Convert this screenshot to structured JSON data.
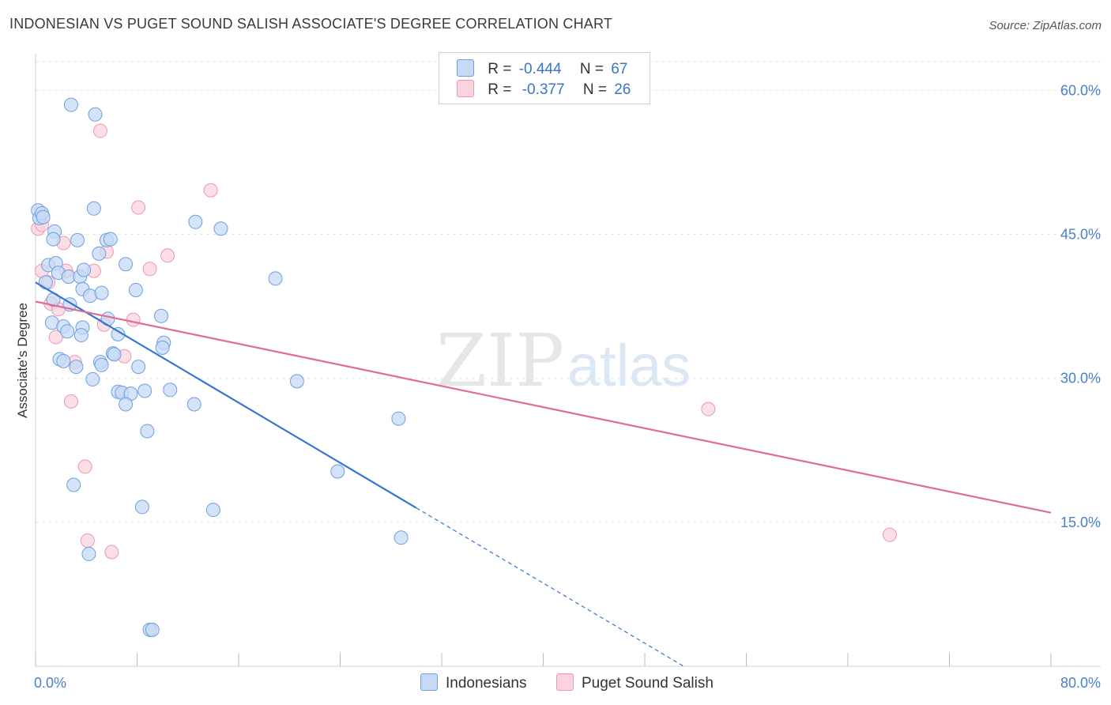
{
  "header": {
    "title": "INDONESIAN VS PUGET SOUND SALISH ASSOCIATE'S DEGREE CORRELATION CHART",
    "source": "Source: ZipAtlas.com"
  },
  "watermark": {
    "zip": "ZIP",
    "atlas": "atlas"
  },
  "colors": {
    "indonesian_fill": "#c6daf5",
    "indonesian_stroke": "#6e9ee0",
    "indonesian_line": "#3576d0",
    "salish_fill": "#f9d3de",
    "salish_stroke": "#ec97b0",
    "salish_line": "#e06b93",
    "grid": "#e4e4e4",
    "tick_text": "#4a7fc9"
  },
  "legend": {
    "rows": [
      {
        "r_label": "R =",
        "r_value": "-0.444",
        "n_label": "N =",
        "n_value": "67"
      },
      {
        "r_label": "R =",
        "r_value": "-0.377",
        "n_label": "N =",
        "n_value": "26"
      }
    ]
  },
  "bottom_legend": {
    "indonesian": "Indonesians",
    "salish": "Puget Sound Salish"
  },
  "chart_data": {
    "type": "scatter",
    "title": "INDONESIAN VS PUGET SOUND SALISH ASSOCIATE'S DEGREE CORRELATION CHART",
    "xlabel": "",
    "ylabel": "Associate's Degree",
    "xlim": [
      0,
      80
    ],
    "ylim": [
      0,
      63
    ],
    "x_tick_labels": {
      "min": "0.0%",
      "max": "80.0%"
    },
    "y_ticks": [
      {
        "value": 15,
        "label": "15.0%"
      },
      {
        "value": 30,
        "label": "30.0%"
      },
      {
        "value": 45,
        "label": "45.0%"
      },
      {
        "value": 60,
        "label": "60.0%"
      }
    ],
    "series": [
      {
        "name": "Indonesians",
        "r": -0.444,
        "n": 67,
        "trend": {
          "x0": 0,
          "y0": 40.0,
          "x1": 30,
          "y1": 16.5,
          "dash_to_x": 51.0
        },
        "points": [
          [
            0.2,
            47.5
          ],
          [
            0.3,
            46.7
          ],
          [
            0.5,
            47.2
          ],
          [
            0.6,
            46.8
          ],
          [
            2.8,
            58.5
          ],
          [
            4.7,
            57.5
          ],
          [
            4.6,
            47.7
          ],
          [
            1.5,
            45.3
          ],
          [
            1.4,
            44.5
          ],
          [
            3.3,
            44.4
          ],
          [
            5.6,
            44.4
          ],
          [
            5.9,
            44.5
          ],
          [
            5.0,
            43.0
          ],
          [
            12.6,
            46.3
          ],
          [
            14.6,
            45.6
          ],
          [
            1.0,
            41.8
          ],
          [
            1.6,
            42.0
          ],
          [
            7.1,
            41.9
          ],
          [
            1.8,
            41.0
          ],
          [
            2.6,
            40.6
          ],
          [
            3.5,
            40.6
          ],
          [
            0.8,
            40.0
          ],
          [
            3.8,
            41.3
          ],
          [
            18.9,
            40.4
          ],
          [
            3.7,
            39.3
          ],
          [
            7.9,
            39.2
          ],
          [
            4.3,
            38.6
          ],
          [
            5.2,
            38.9
          ],
          [
            1.4,
            38.2
          ],
          [
            2.7,
            37.7
          ],
          [
            9.9,
            36.5
          ],
          [
            5.7,
            36.2
          ],
          [
            1.3,
            35.8
          ],
          [
            2.2,
            35.4
          ],
          [
            3.7,
            35.3
          ],
          [
            2.5,
            34.9
          ],
          [
            3.6,
            34.5
          ],
          [
            6.5,
            34.6
          ],
          [
            10.1,
            33.7
          ],
          [
            6.1,
            32.6
          ],
          [
            6.2,
            32.5
          ],
          [
            1.9,
            32.0
          ],
          [
            2.2,
            31.8
          ],
          [
            5.1,
            31.7
          ],
          [
            5.2,
            31.4
          ],
          [
            3.2,
            31.2
          ],
          [
            8.1,
            31.2
          ],
          [
            4.5,
            29.9
          ],
          [
            20.6,
            29.7
          ],
          [
            6.5,
            28.6
          ],
          [
            6.8,
            28.5
          ],
          [
            7.5,
            28.4
          ],
          [
            8.6,
            28.7
          ],
          [
            10.6,
            28.8
          ],
          [
            7.1,
            27.3
          ],
          [
            12.5,
            27.3
          ],
          [
            28.6,
            25.8
          ],
          [
            8.8,
            24.5
          ],
          [
            23.8,
            20.3
          ],
          [
            3.0,
            18.9
          ],
          [
            8.4,
            16.6
          ],
          [
            14.0,
            16.3
          ],
          [
            28.8,
            13.4
          ],
          [
            4.2,
            11.7
          ],
          [
            9.0,
            3.8
          ],
          [
            9.2,
            3.8
          ],
          [
            10.0,
            33.2
          ]
        ]
      },
      {
        "name": "Puget Sound Salish",
        "r": -0.377,
        "n": 26,
        "trend": {
          "x0": 0,
          "y0": 38.0,
          "x1": 80,
          "y1": 16.0
        },
        "points": [
          [
            5.1,
            55.8
          ],
          [
            13.8,
            49.6
          ],
          [
            8.1,
            47.8
          ],
          [
            0.2,
            45.6
          ],
          [
            0.5,
            46.0
          ],
          [
            2.2,
            44.1
          ],
          [
            5.6,
            43.2
          ],
          [
            10.4,
            42.8
          ],
          [
            0.5,
            41.2
          ],
          [
            2.4,
            41.2
          ],
          [
            4.6,
            41.2
          ],
          [
            9.0,
            41.4
          ],
          [
            1.0,
            40.0
          ],
          [
            1.2,
            37.8
          ],
          [
            1.8,
            37.2
          ],
          [
            7.7,
            36.1
          ],
          [
            5.4,
            35.6
          ],
          [
            1.6,
            34.3
          ],
          [
            7.0,
            32.3
          ],
          [
            3.1,
            31.7
          ],
          [
            2.8,
            27.6
          ],
          [
            53.0,
            26.8
          ],
          [
            3.9,
            20.8
          ],
          [
            67.3,
            13.7
          ],
          [
            4.1,
            13.1
          ],
          [
            6.0,
            11.9
          ]
        ]
      }
    ]
  }
}
